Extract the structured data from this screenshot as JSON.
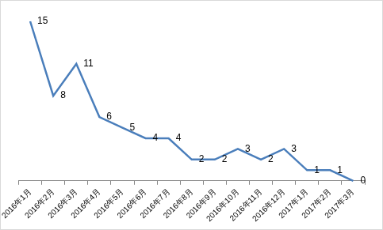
{
  "chart_data": {
    "type": "line",
    "categories": [
      "2016年1月",
      "2016年2月",
      "2016年3月",
      "2016年4月",
      "2016年5月",
      "2016年6月",
      "2016年7月",
      "2016年8月",
      "2016年9月",
      "2016年10月",
      "2016年11月",
      "2016年12月",
      "2017年1月",
      "2017年2月",
      "2017年3月"
    ],
    "values": [
      15,
      8,
      11,
      6,
      5,
      4,
      4,
      2,
      2,
      3,
      2,
      3,
      1,
      1,
      0
    ],
    "color": "#4a7ebb",
    "ylim": [
      0,
      15
    ],
    "grid": false,
    "data_labels": true,
    "tick_labels": "x"
  }
}
